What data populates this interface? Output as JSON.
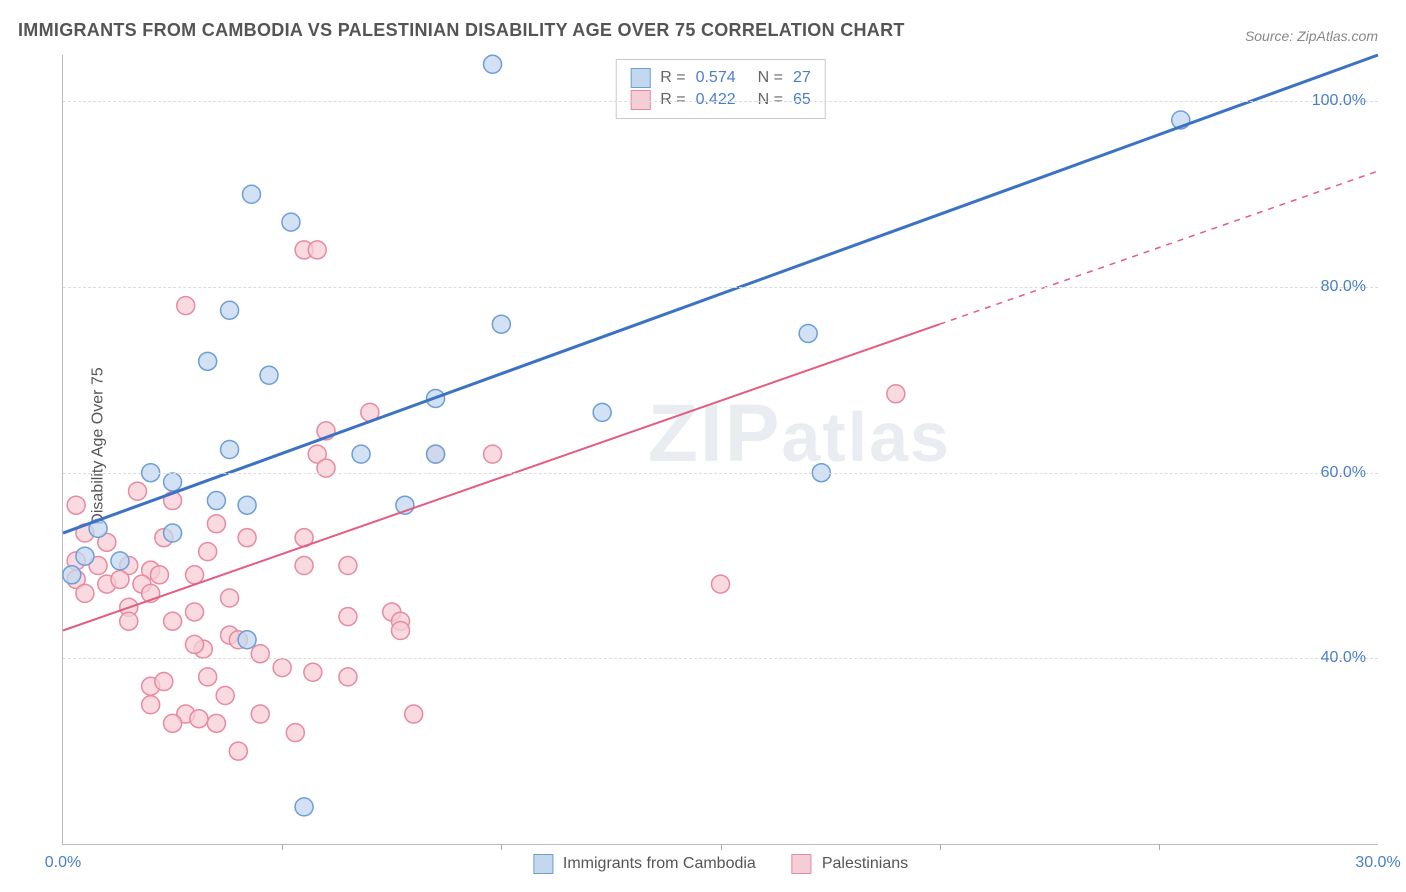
{
  "title": "IMMIGRANTS FROM CAMBODIA VS PALESTINIAN DISABILITY AGE OVER 75 CORRELATION CHART",
  "source": "Source: ZipAtlas.com",
  "watermark": "ZIPatlas",
  "y_axis_title": "Disability Age Over 75",
  "x_axis": {
    "min": 0,
    "max": 30,
    "ticks": [
      0,
      30
    ],
    "tick_labels": [
      "0.0%",
      "30.0%"
    ],
    "minor_ticks": [
      5,
      10,
      15,
      20,
      25
    ]
  },
  "y_axis": {
    "min": 20,
    "max": 105,
    "ticks": [
      40,
      60,
      80,
      100
    ],
    "tick_labels": [
      "40.0%",
      "60.0%",
      "80.0%",
      "100.0%"
    ]
  },
  "grid_color": "#dddddd",
  "axis_line_color": "#bbbbbb",
  "tick_label_color": "#4a7ec9",
  "background_color": "#ffffff",
  "series": [
    {
      "id": "cambodia",
      "label": "Immigrants from Cambodia",
      "marker_color_fill": "#c3d7ef",
      "marker_color_stroke": "#6d9fd6",
      "marker_opacity": 0.75,
      "marker_radius": 9,
      "line_color": "#3b72c4",
      "line_width": 3,
      "line_dash": "none",
      "line_p1": {
        "x": 0,
        "y": 53.5
      },
      "line_p2": {
        "x": 30,
        "y": 105
      },
      "r": "0.574",
      "n": "27",
      "points": [
        {
          "x": 9.8,
          "y": 104
        },
        {
          "x": 25.5,
          "y": 98
        },
        {
          "x": 4.3,
          "y": 90
        },
        {
          "x": 5.2,
          "y": 87
        },
        {
          "x": 3.8,
          "y": 77.5
        },
        {
          "x": 10.0,
          "y": 76
        },
        {
          "x": 17.0,
          "y": 75
        },
        {
          "x": 3.3,
          "y": 72
        },
        {
          "x": 4.7,
          "y": 70.5
        },
        {
          "x": 8.5,
          "y": 68
        },
        {
          "x": 12.3,
          "y": 66.5
        },
        {
          "x": 3.8,
          "y": 62.5
        },
        {
          "x": 6.8,
          "y": 62
        },
        {
          "x": 8.5,
          "y": 62
        },
        {
          "x": 17.3,
          "y": 60
        },
        {
          "x": 2.0,
          "y": 60
        },
        {
          "x": 2.5,
          "y": 59
        },
        {
          "x": 3.5,
          "y": 57
        },
        {
          "x": 4.2,
          "y": 56.5
        },
        {
          "x": 7.8,
          "y": 56.5
        },
        {
          "x": 0.8,
          "y": 54
        },
        {
          "x": 2.5,
          "y": 53.5
        },
        {
          "x": 0.5,
          "y": 51
        },
        {
          "x": 1.3,
          "y": 50.5
        },
        {
          "x": 0.2,
          "y": 49
        },
        {
          "x": 4.2,
          "y": 42
        },
        {
          "x": 5.5,
          "y": 24
        }
      ]
    },
    {
      "id": "palestinians",
      "label": "Palestinians",
      "marker_color_fill": "#f5cdd6",
      "marker_color_stroke": "#e88aa0",
      "marker_opacity": 0.75,
      "marker_radius": 9,
      "line_color": "#e35d82",
      "line_width": 2,
      "line_dash": "none",
      "line_p1": {
        "x": 0,
        "y": 43
      },
      "line_p2": {
        "x": 20,
        "y": 76
      },
      "line_dash_ext_p2": {
        "x": 30,
        "y": 92.5
      },
      "r": "0.422",
      "n": "65",
      "points": [
        {
          "x": 5.5,
          "y": 84
        },
        {
          "x": 5.8,
          "y": 84
        },
        {
          "x": 2.8,
          "y": 78
        },
        {
          "x": 19.0,
          "y": 68.5
        },
        {
          "x": 7.0,
          "y": 66.5
        },
        {
          "x": 6.0,
          "y": 64.5
        },
        {
          "x": 5.8,
          "y": 62
        },
        {
          "x": 8.5,
          "y": 62
        },
        {
          "x": 9.8,
          "y": 62
        },
        {
          "x": 6.0,
          "y": 60.5
        },
        {
          "x": 1.7,
          "y": 58
        },
        {
          "x": 0.3,
          "y": 56.5
        },
        {
          "x": 2.5,
          "y": 57
        },
        {
          "x": 3.5,
          "y": 54.5
        },
        {
          "x": 0.5,
          "y": 53.5
        },
        {
          "x": 1.0,
          "y": 52.5
        },
        {
          "x": 2.3,
          "y": 53
        },
        {
          "x": 4.2,
          "y": 53
        },
        {
          "x": 5.5,
          "y": 53
        },
        {
          "x": 3.3,
          "y": 51.5
        },
        {
          "x": 0.3,
          "y": 50.5
        },
        {
          "x": 0.8,
          "y": 50
        },
        {
          "x": 1.5,
          "y": 50
        },
        {
          "x": 2.0,
          "y": 49.5
        },
        {
          "x": 2.2,
          "y": 49
        },
        {
          "x": 3.0,
          "y": 49
        },
        {
          "x": 5.5,
          "y": 50
        },
        {
          "x": 6.5,
          "y": 50
        },
        {
          "x": 0.3,
          "y": 48.5
        },
        {
          "x": 1.0,
          "y": 48
        },
        {
          "x": 1.3,
          "y": 48.5
        },
        {
          "x": 1.8,
          "y": 48
        },
        {
          "x": 0.5,
          "y": 47
        },
        {
          "x": 2.0,
          "y": 47
        },
        {
          "x": 3.8,
          "y": 46.5
        },
        {
          "x": 15.0,
          "y": 48
        },
        {
          "x": 1.5,
          "y": 45.5
        },
        {
          "x": 3.0,
          "y": 45
        },
        {
          "x": 6.5,
          "y": 44.5
        },
        {
          "x": 7.5,
          "y": 45
        },
        {
          "x": 7.7,
          "y": 44
        },
        {
          "x": 7.7,
          "y": 43
        },
        {
          "x": 3.8,
          "y": 42.5
        },
        {
          "x": 4.0,
          "y": 42
        },
        {
          "x": 3.2,
          "y": 41
        },
        {
          "x": 4.5,
          "y": 40.5
        },
        {
          "x": 2.0,
          "y": 37
        },
        {
          "x": 3.3,
          "y": 38
        },
        {
          "x": 5.7,
          "y": 38.5
        },
        {
          "x": 6.5,
          "y": 38
        },
        {
          "x": 2.3,
          "y": 37.5
        },
        {
          "x": 3.7,
          "y": 36
        },
        {
          "x": 2.8,
          "y": 34
        },
        {
          "x": 3.1,
          "y": 33.5
        },
        {
          "x": 3.5,
          "y": 33
        },
        {
          "x": 2.5,
          "y": 33
        },
        {
          "x": 4.5,
          "y": 34
        },
        {
          "x": 5.3,
          "y": 32
        },
        {
          "x": 8.0,
          "y": 34
        },
        {
          "x": 4.0,
          "y": 30
        },
        {
          "x": 1.5,
          "y": 44
        },
        {
          "x": 2.5,
          "y": 44
        },
        {
          "x": 3.0,
          "y": 41.5
        },
        {
          "x": 5.0,
          "y": 39
        },
        {
          "x": 2.0,
          "y": 35
        }
      ]
    }
  ],
  "legend_top_labels": {
    "R": "R =",
    "N": "N ="
  },
  "legend_bottom": [
    {
      "swatch_fill": "#c3d7ef",
      "swatch_stroke": "#6d9fd6",
      "label": "Immigrants from Cambodia"
    },
    {
      "swatch_fill": "#f5cdd6",
      "swatch_stroke": "#e88aa0",
      "label": "Palestinians"
    }
  ]
}
